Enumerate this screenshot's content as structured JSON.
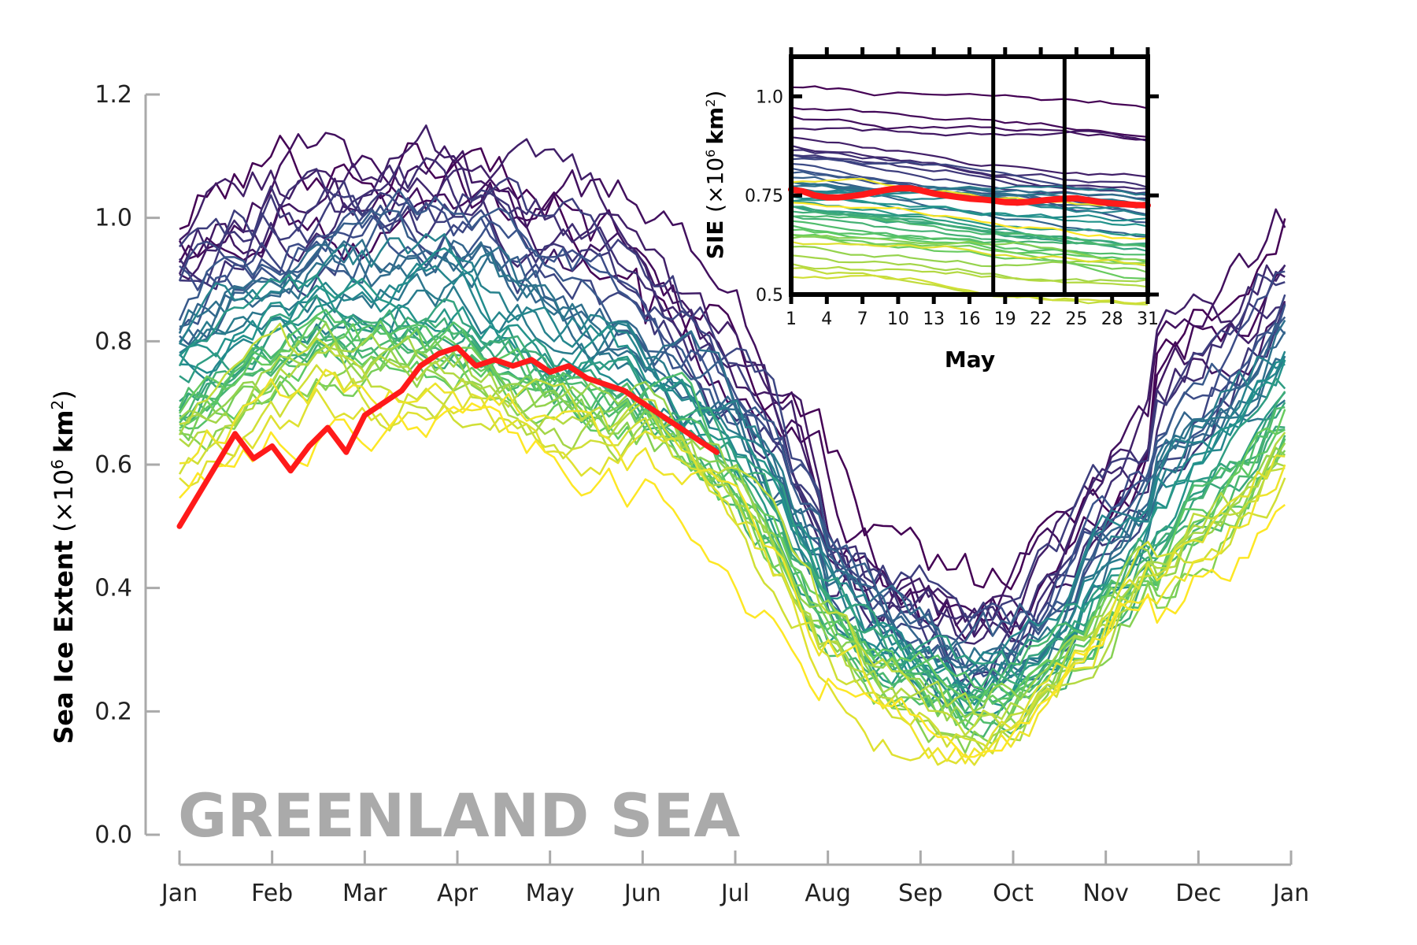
{
  "chart_data": [
    {
      "type": "line",
      "region_label": "GREENLAND SEA",
      "ylabel_bold": "Sea Ice Extent",
      "ylabel_units": "(×10",
      "ylabel_exp": "6",
      "ylabel_unit_bold": "km",
      "ylabel_unit_exp": "2",
      "ylabel_close": ")",
      "ylim": [
        0.0,
        1.2
      ],
      "yticks": [
        "0.0",
        "0.2",
        "0.4",
        "0.6",
        "0.8",
        "1.0",
        "1.2"
      ],
      "xticks": [
        "Jan",
        "Feb",
        "Mar",
        "Apr",
        "May",
        "Jun",
        "Jul",
        "Aug",
        "Sep",
        "Oct",
        "Nov",
        "Dec",
        "Jan"
      ],
      "x_unit": "month",
      "colormap": [
        "#440154",
        "#3b528b",
        "#21908d",
        "#5dc963",
        "#fde725"
      ],
      "highlight_color": "#ff1a1a",
      "climatology_months": [
        0,
        0.5,
        1,
        1.5,
        2,
        2.5,
        3,
        3.5,
        4,
        4.5,
        5,
        5.5,
        6,
        6.5,
        7,
        7.5,
        8,
        8.5,
        9,
        9.5,
        10,
        10.5,
        11,
        11.5,
        12
      ],
      "series_count": 44,
      "series_anomalies": [
        0.28,
        0.22,
        0.25,
        0.19,
        0.24,
        0.18,
        0.2,
        0.16,
        0.21,
        0.15,
        0.17,
        0.13,
        0.14,
        0.11,
        0.12,
        0.09,
        0.1,
        0.08,
        0.06,
        0.07,
        0.05,
        0.03,
        0.04,
        0.02,
        0.0,
        0.01,
        -0.01,
        -0.02,
        -0.03,
        -0.04,
        -0.02,
        -0.05,
        -0.06,
        -0.04,
        -0.07,
        -0.08,
        -0.06,
        -0.09,
        -0.1,
        -0.08,
        -0.11,
        -0.12,
        -0.1,
        -0.16
      ],
      "climatology_values": [
        0.72,
        0.76,
        0.8,
        0.82,
        0.82,
        0.83,
        0.82,
        0.8,
        0.76,
        0.74,
        0.72,
        0.67,
        0.6,
        0.5,
        0.38,
        0.3,
        0.26,
        0.22,
        0.24,
        0.3,
        0.4,
        0.48,
        0.57,
        0.63,
        0.72
      ],
      "current_year": {
        "color": "#ff1a1a",
        "x": [
          0.0,
          0.2,
          0.4,
          0.6,
          0.8,
          1.0,
          1.2,
          1.4,
          1.6,
          1.8,
          2.0,
          2.2,
          2.4,
          2.6,
          2.8,
          3.0,
          3.2,
          3.4,
          3.6,
          3.8,
          4.0,
          4.2,
          4.4,
          4.6,
          4.8,
          5.0,
          5.2,
          5.4,
          5.6,
          5.8
        ],
        "y": [
          0.5,
          0.55,
          0.6,
          0.65,
          0.61,
          0.63,
          0.59,
          0.63,
          0.66,
          0.62,
          0.68,
          0.7,
          0.72,
          0.76,
          0.78,
          0.79,
          0.76,
          0.77,
          0.76,
          0.77,
          0.75,
          0.76,
          0.74,
          0.73,
          0.72,
          0.7,
          0.68,
          0.66,
          0.64,
          0.62
        ]
      }
    },
    {
      "type": "line",
      "xlabel": "May",
      "ylabel_bold": "SIE",
      "ylabel_units": "(×10",
      "ylabel_exp": "6",
      "ylabel_unit_bold": "km",
      "ylabel_unit_exp": "2",
      "ylabel_close": ")",
      "ylim": [
        0.5,
        1.1
      ],
      "xlim": [
        1,
        31
      ],
      "yticks": [
        "0.5",
        "0.75",
        "1.0"
      ],
      "ytick_values": [
        0.5,
        0.75,
        1.0
      ],
      "xticks": [
        "1",
        "4",
        "7",
        "10",
        "13",
        "16",
        "19",
        "22",
        "25",
        "28",
        "31"
      ],
      "xtick_values": [
        1,
        4,
        7,
        10,
        13,
        16,
        19,
        22,
        25,
        28,
        31
      ],
      "vertical_markers": [
        18,
        24
      ],
      "series_start_values": [
        1.02,
        0.97,
        0.95,
        0.92,
        0.9,
        0.88,
        0.87,
        0.86,
        0.85,
        0.84,
        0.83,
        0.82,
        0.81,
        0.8,
        0.79,
        0.79,
        0.78,
        0.78,
        0.77,
        0.76,
        0.76,
        0.75,
        0.74,
        0.74,
        0.73,
        0.72,
        0.72,
        0.71,
        0.7,
        0.7,
        0.69,
        0.68,
        0.67,
        0.66,
        0.65,
        0.64,
        0.62,
        0.6,
        0.58,
        0.57,
        0.55,
        0.64,
        0.78,
        0.73
      ],
      "current_year": {
        "color": "#ff1a1a",
        "x": [
          1,
          2,
          3,
          4,
          5,
          6,
          7,
          8,
          9,
          10,
          11,
          12,
          13,
          14,
          15,
          16,
          17,
          18,
          19,
          20,
          21,
          22,
          23,
          24,
          25,
          26,
          27,
          28,
          29,
          30,
          31
        ],
        "y": [
          0.765,
          0.76,
          0.75,
          0.745,
          0.745,
          0.748,
          0.752,
          0.758,
          0.764,
          0.768,
          0.768,
          0.762,
          0.755,
          0.75,
          0.746,
          0.742,
          0.74,
          0.737,
          0.733,
          0.732,
          0.734,
          0.737,
          0.74,
          0.742,
          0.743,
          0.738,
          0.733,
          0.73,
          0.728,
          0.726,
          0.725
        ]
      }
    }
  ]
}
